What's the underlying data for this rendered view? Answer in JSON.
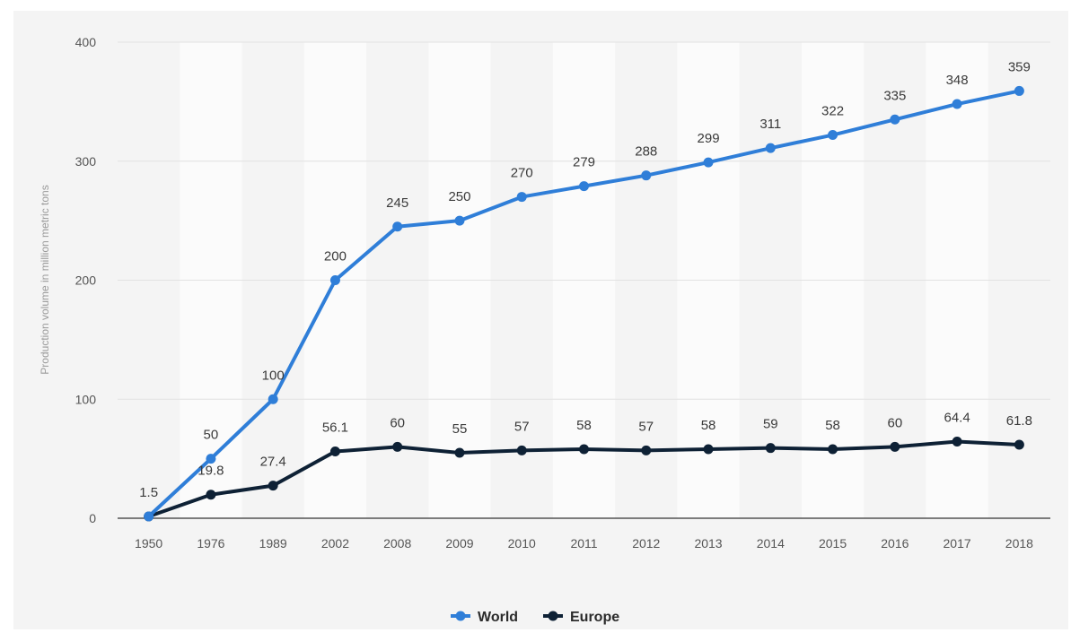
{
  "chart_data": {
    "type": "line",
    "categories": [
      "1950",
      "1976",
      "1989",
      "2002",
      "2008",
      "2009",
      "2010",
      "2011",
      "2012",
      "2013",
      "2014",
      "2015",
      "2016",
      "2017",
      "2018"
    ],
    "series": [
      {
        "name": "World",
        "color": "#2f7ed8",
        "values": [
          1.5,
          50,
          100,
          200,
          245,
          250,
          270,
          279,
          288,
          299,
          311,
          322,
          335,
          348,
          359
        ],
        "labels": [
          "1.5",
          "50",
          "100",
          "200",
          "245",
          "250",
          "270",
          "279",
          "288",
          "299",
          "311",
          "322",
          "335",
          "348",
          "359"
        ]
      },
      {
        "name": "Europe",
        "color": "#0e2135",
        "values": [
          1.5,
          19.8,
          27.4,
          56.1,
          60,
          55,
          57,
          58,
          57,
          58,
          59,
          58,
          60,
          64.4,
          61.8
        ],
        "labels": [
          "",
          "19.8",
          "27.4",
          "56.1",
          "60",
          "55",
          "57",
          "58",
          "57",
          "58",
          "59",
          "58",
          "60",
          "64.4",
          "61.8"
        ]
      }
    ],
    "ylabel": "Production volume in million metric tons",
    "ylim": [
      0,
      400
    ],
    "yticks": [
      "0",
      "100",
      "200",
      "300",
      "400"
    ],
    "ytick_values": [
      0,
      100,
      200,
      300,
      400
    ],
    "grid": true,
    "legend_position": "bottom-center"
  }
}
